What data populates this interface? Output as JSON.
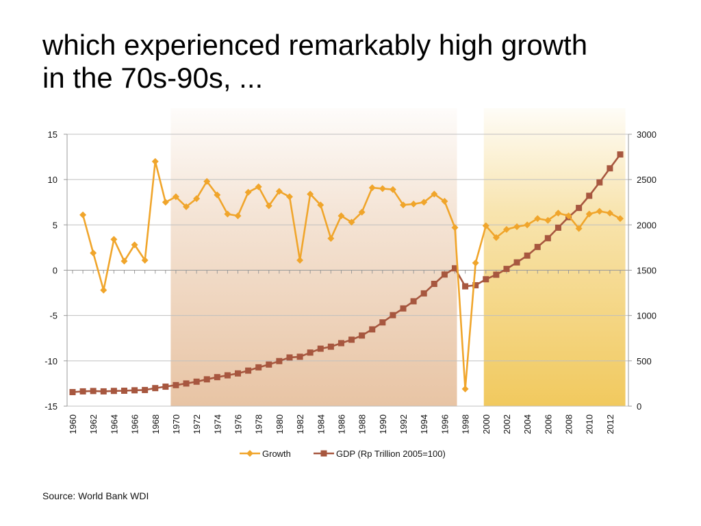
{
  "slide": {
    "title_line1": "which experienced remarkably high growth",
    "title_line2": "in the 70s-90s, ..."
  },
  "source": "Source: World Bank WDI",
  "colors": {
    "growth": "#F0A52B",
    "gdp": "#A7573F",
    "band1": "#E8C4A4",
    "band2": "#F1C95E",
    "grid": "#BFBFBF"
  },
  "chart_data": {
    "type": "line",
    "title": "",
    "x": [
      1960,
      1961,
      1962,
      1963,
      1964,
      1965,
      1966,
      1967,
      1968,
      1969,
      1970,
      1971,
      1972,
      1973,
      1974,
      1975,
      1976,
      1977,
      1978,
      1979,
      1980,
      1981,
      1982,
      1983,
      1984,
      1985,
      1986,
      1987,
      1988,
      1989,
      1990,
      1991,
      1992,
      1993,
      1994,
      1995,
      1996,
      1997,
      1998,
      1999,
      2000,
      2001,
      2002,
      2003,
      2004,
      2005,
      2006,
      2007,
      2008,
      2009,
      2010,
      2011,
      2012,
      2013
    ],
    "x_tick_labels": [
      "1960",
      "1962",
      "1964",
      "1966",
      "1968",
      "1970",
      "1972",
      "1974",
      "1976",
      "1978",
      "1980",
      "1982",
      "1984",
      "1986",
      "1988",
      "1990",
      "1992",
      "1994",
      "1996",
      "1998",
      "2000",
      "2002",
      "2004",
      "2006",
      "2008",
      "2010",
      "2012"
    ],
    "left_axis": {
      "min": -15,
      "max": 15,
      "ticks": [
        "15",
        "10",
        "5",
        "0",
        "-5",
        "-10",
        "-15"
      ]
    },
    "right_axis": {
      "min": 0,
      "max": 3000,
      "ticks": [
        "3000",
        "2500",
        "2000",
        "1500",
        "1000",
        "500",
        "0"
      ]
    },
    "shaded_periods": [
      {
        "from": 1969.5,
        "to": 1997.2
      },
      {
        "from": 1999.8,
        "to": 2013.5
      }
    ],
    "legend_position": "bottom",
    "series": [
      {
        "name": "Growth",
        "axis": "left",
        "marker": "diamond",
        "values": [
          null,
          6.1,
          1.9,
          -2.2,
          3.4,
          1.0,
          2.8,
          1.1,
          12.0,
          7.5,
          8.1,
          7.0,
          7.9,
          9.8,
          8.3,
          6.2,
          6.0,
          8.6,
          9.2,
          7.1,
          8.7,
          8.1,
          1.1,
          8.4,
          7.2,
          3.5,
          6.0,
          5.3,
          6.4,
          9.1,
          9.0,
          8.9,
          7.2,
          7.3,
          7.5,
          8.4,
          7.6,
          4.7,
          -13.1,
          0.8,
          4.9,
          3.6,
          4.5,
          4.8,
          5.0,
          5.7,
          5.5,
          6.3,
          6.0,
          4.6,
          6.2,
          6.5,
          6.3,
          5.7
        ]
      },
      {
        "name": "GDP (Rp Trillion 2005=100)",
        "axis": "right",
        "marker": "square",
        "values": [
          155,
          163,
          167,
          163,
          168,
          170,
          175,
          178,
          199,
          215,
          232,
          250,
          270,
          296,
          320,
          340,
          361,
          392,
          428,
          459,
          497,
          537,
          545,
          591,
          634,
          656,
          695,
          733,
          779,
          847,
          924,
          1004,
          1078,
          1157,
          1244,
          1349,
          1452,
          1521,
          1322,
          1334,
          1400,
          1450,
          1514,
          1586,
          1661,
          1756,
          1853,
          1969,
          2085,
          2187,
          2321,
          2469,
          2624,
          2777
        ]
      }
    ]
  }
}
